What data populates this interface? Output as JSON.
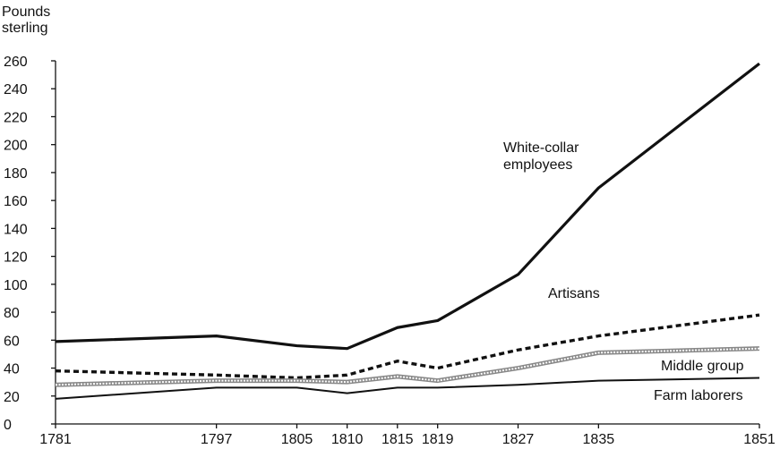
{
  "chart_data": {
    "type": "line",
    "ylabel_lines": [
      "Pounds",
      "sterling"
    ],
    "x": [
      1781,
      1797,
      1805,
      1810,
      1815,
      1819,
      1827,
      1835,
      1851
    ],
    "xlim": [
      1781,
      1851
    ],
    "xticks": [
      1781,
      1797,
      1805,
      1810,
      1815,
      1819,
      1827,
      1835,
      1851
    ],
    "ylim": [
      0,
      260
    ],
    "yticks": [
      0,
      20,
      40,
      60,
      80,
      100,
      120,
      140,
      160,
      180,
      200,
      220,
      240,
      260
    ],
    "grid": false,
    "series": [
      {
        "name": "White-collar employees",
        "color": "#111111",
        "line_style": "solid-thick",
        "values": [
          59,
          63,
          56,
          54,
          69,
          74,
          107,
          169,
          258
        ]
      },
      {
        "name": "Artisans",
        "color": "#111111",
        "line_style": "dashed",
        "values": [
          38,
          35,
          33,
          35,
          45,
          40,
          53,
          63,
          78
        ]
      },
      {
        "name": "Middle group",
        "color": "#888888",
        "line_style": "hatched",
        "values": [
          28,
          31,
          31,
          30,
          34,
          31,
          40,
          51,
          54
        ]
      },
      {
        "name": "Farm laborers",
        "color": "#111111",
        "line_style": "solid",
        "values": [
          18,
          26,
          26,
          22,
          26,
          26,
          28,
          31,
          33
        ]
      }
    ]
  }
}
